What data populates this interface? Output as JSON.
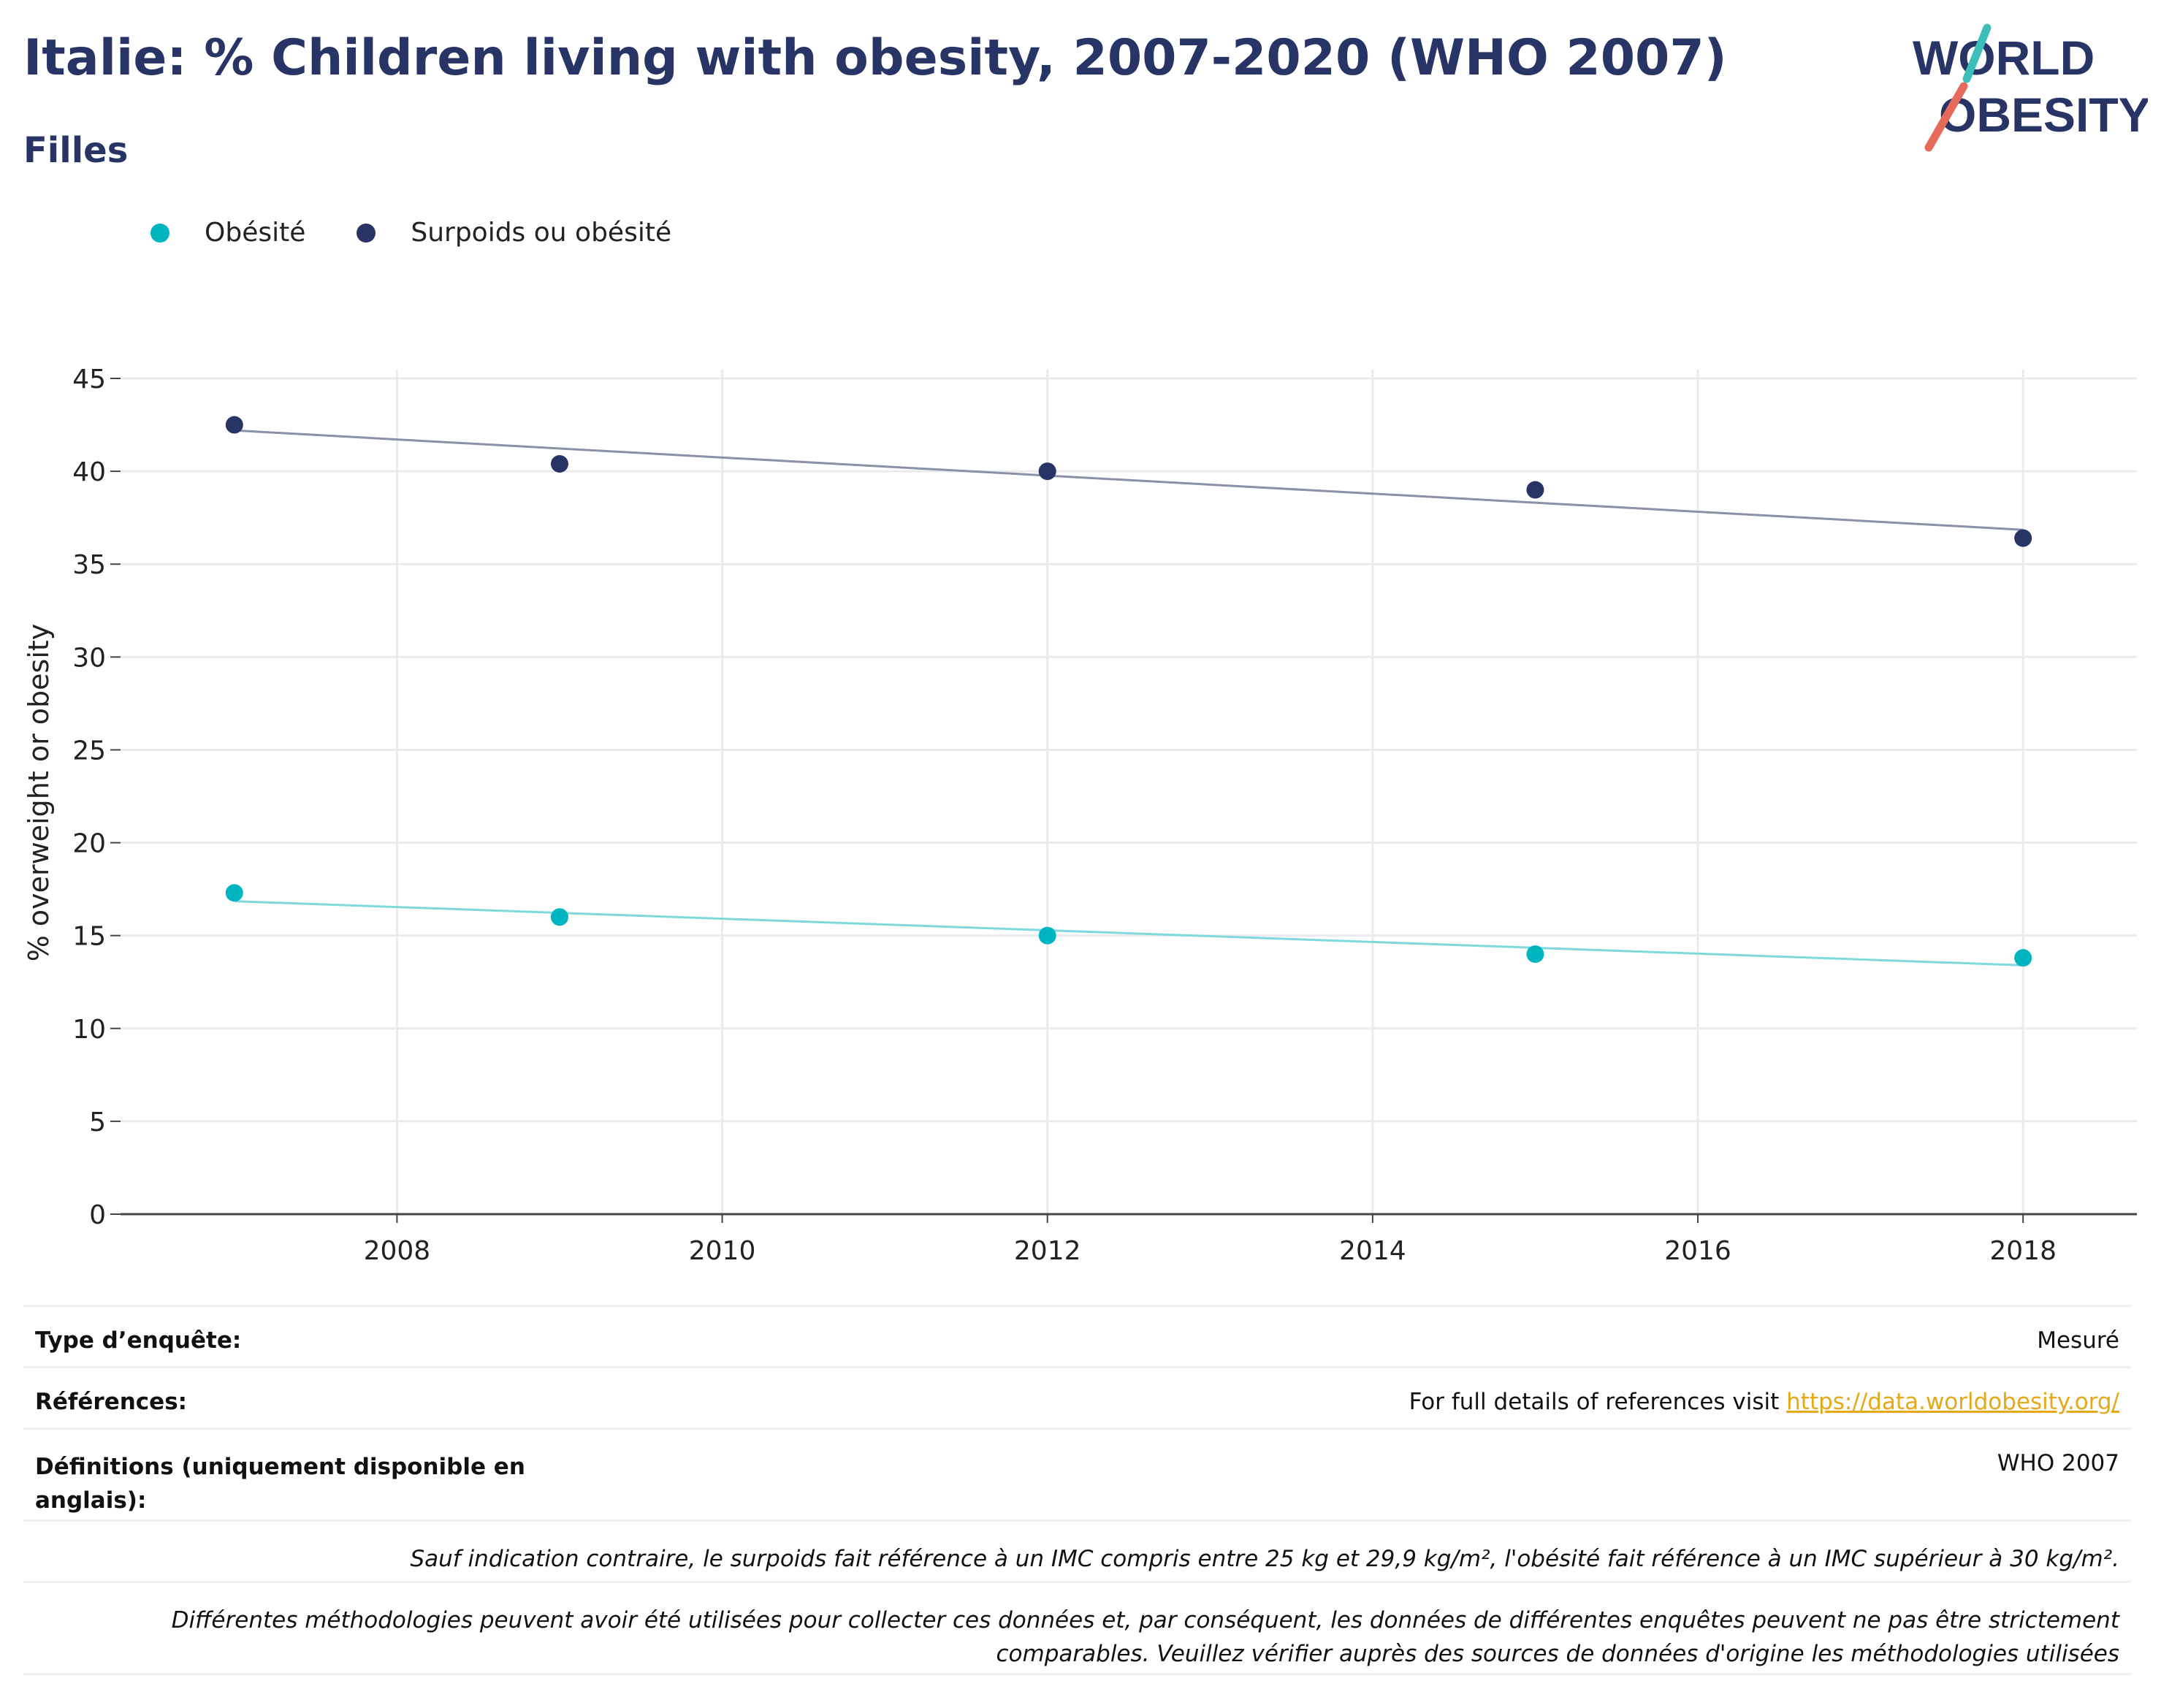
{
  "header": {
    "title": "Italie: % Children living with obesity, 2007-2020 (WHO 2007)",
    "subtitle": "Filles"
  },
  "logo": {
    "line1": "WORLD",
    "line2": "OBESITY",
    "accent_colors": [
      "#3bbfb8",
      "#e66a5a"
    ]
  },
  "legend": {
    "items": [
      {
        "label": "Obésité",
        "color": "#00b5bf"
      },
      {
        "label": "Surpoids ou obésité",
        "color": "#273465"
      }
    ]
  },
  "chart_data": {
    "type": "scatter",
    "title": "",
    "xlabel": "",
    "ylabel": "% overweight or obesity",
    "xlim": [
      2006.3,
      2018.7
    ],
    "ylim": [
      0,
      45
    ],
    "x_ticks": [
      2008,
      2010,
      2012,
      2014,
      2016,
      2018
    ],
    "y_ticks": [
      0,
      5,
      10,
      15,
      20,
      25,
      30,
      35,
      40,
      45
    ],
    "grid": true,
    "legend_position": "top-left",
    "series": [
      {
        "name": "Obésité",
        "color": "#00b5bf",
        "trend_color": "#7fd9dd",
        "x": [
          2007,
          2009,
          2012,
          2015,
          2018
        ],
        "y": [
          17.3,
          16.0,
          15.0,
          14.0,
          13.8
        ],
        "trend": {
          "x": [
            2007,
            2018
          ],
          "y": [
            16.85,
            13.4
          ]
        }
      },
      {
        "name": "Surpoids ou obésité",
        "color": "#273465",
        "trend_color": "#8a90a8",
        "x": [
          2007,
          2009,
          2012,
          2015,
          2018
        ],
        "y": [
          42.5,
          40.4,
          40.0,
          39.0,
          36.4
        ],
        "trend": {
          "x": [
            2007,
            2018
          ],
          "y": [
            42.2,
            36.85
          ]
        }
      }
    ]
  },
  "info": {
    "survey_type_label": "Type d’enquête:",
    "survey_type_value": "Mesuré",
    "references_label": "Références:",
    "references_text": "For full details of references visit ",
    "references_link": "https://data.worldobesity.org/",
    "definitions_label": "Définitions (uniquement disponible en anglais):",
    "definitions_value": "WHO 2007",
    "note_bmi": "Sauf indication contraire, le surpoids fait référence à un IMC compris entre 25 kg et 29,9 kg/m², l'obésité fait référence à un IMC supérieur à 30 kg/m².",
    "note_methods": "Différentes méthodologies peuvent avoir été utilisées pour collecter ces données et, par conséquent, les données de différentes enquêtes peuvent ne pas être strictement comparables. Veuillez vérifier auprès des sources de données d'origine les méthodologies utilisées"
  }
}
